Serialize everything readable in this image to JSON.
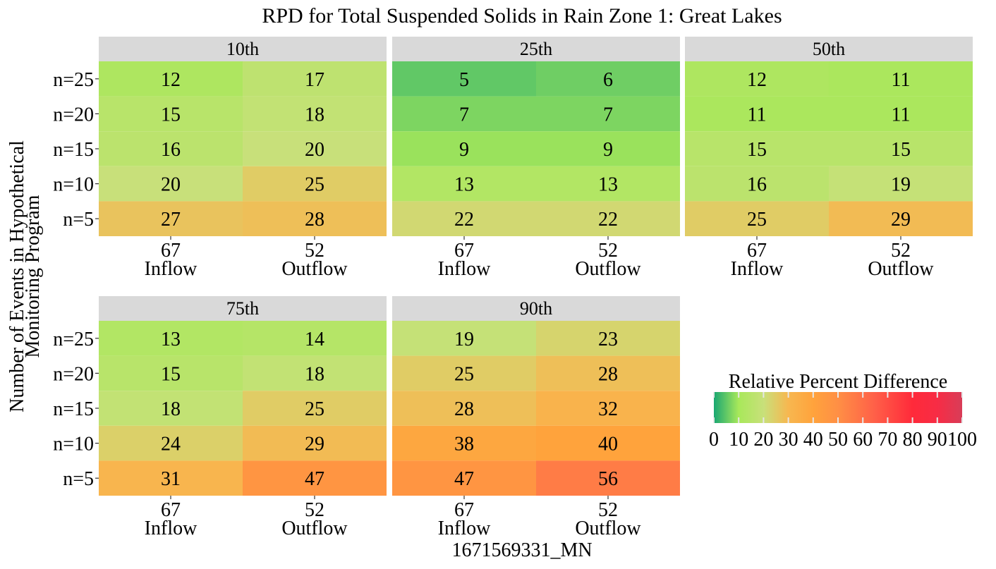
{
  "chart_data": {
    "type": "heatmap",
    "title": "RPD for Total Suspended Solids in Rain Zone 1: Great Lakes",
    "xlabel": "1671569331_MN",
    "ylabel_lines": [
      "Number of Events in Hypothetical",
      "Monitoring Program"
    ],
    "rows": [
      "n=25",
      "n=20",
      "n=15",
      "n=10",
      "n=5"
    ],
    "columns": [
      {
        "count": "67",
        "label": "Inflow"
      },
      {
        "count": "52",
        "label": "Outflow"
      }
    ],
    "panels": [
      {
        "name": "10th",
        "values": [
          [
            12,
            17
          ],
          [
            15,
            18
          ],
          [
            16,
            20
          ],
          [
            20,
            25
          ],
          [
            27,
            28
          ]
        ]
      },
      {
        "name": "25th",
        "values": [
          [
            5,
            6
          ],
          [
            7,
            7
          ],
          [
            9,
            9
          ],
          [
            13,
            13
          ],
          [
            22,
            22
          ]
        ]
      },
      {
        "name": "50th",
        "values": [
          [
            12,
            11
          ],
          [
            11,
            11
          ],
          [
            15,
            15
          ],
          [
            16,
            19
          ],
          [
            25,
            29
          ]
        ]
      },
      {
        "name": "75th",
        "values": [
          [
            13,
            14
          ],
          [
            15,
            18
          ],
          [
            18,
            25
          ],
          [
            24,
            29
          ],
          [
            31,
            47
          ]
        ]
      },
      {
        "name": "90th",
        "values": [
          [
            19,
            23
          ],
          [
            25,
            28
          ],
          [
            28,
            32
          ],
          [
            38,
            40
          ],
          [
            47,
            56
          ]
        ]
      }
    ],
    "legend": {
      "title": "Relative Percent Difference",
      "placement": "right",
      "range": [
        0,
        100
      ],
      "ticks": [
        "0",
        "10",
        "20",
        "30",
        "40",
        "50",
        "60",
        "70",
        "80",
        "90",
        "100"
      ],
      "color_stops": [
        {
          "value": 0,
          "color": "#1aa772"
        },
        {
          "value": 10,
          "color": "#a8e85a"
        },
        {
          "value": 20,
          "color": "#c8e07a"
        },
        {
          "value": 30,
          "color": "#f7b750"
        },
        {
          "value": 40,
          "color": "#ffa33c"
        },
        {
          "value": 50,
          "color": "#ff8f45"
        },
        {
          "value": 65,
          "color": "#ff5f48"
        },
        {
          "value": 80,
          "color": "#ff2a3a"
        },
        {
          "value": 90,
          "color": "#f72c45"
        },
        {
          "value": 100,
          "color": "#d83d58"
        }
      ]
    },
    "colors": {
      "strip_background": "#d9d9d9",
      "panel_background": "#ffffff"
    }
  }
}
